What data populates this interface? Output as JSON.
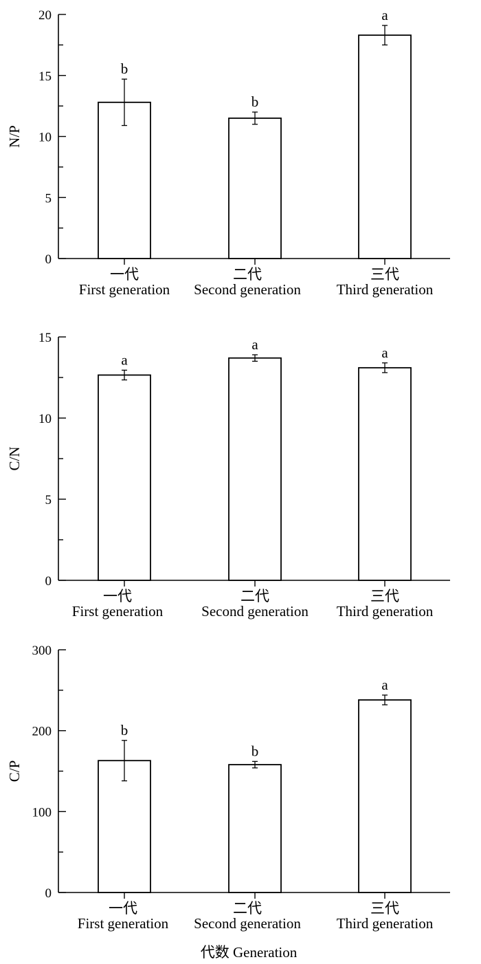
{
  "chart_data": [
    {
      "type": "bar",
      "ylabel": "N/P",
      "ylim": [
        0,
        20
      ],
      "yticks": [
        0,
        5,
        10,
        15,
        20
      ],
      "categories": [
        {
          "zh": "一代",
          "en": "First generation"
        },
        {
          "zh": "二代",
          "en": "Second generation"
        },
        {
          "zh": "三代",
          "en": "Third generation"
        }
      ],
      "values": [
        12.8,
        11.5,
        18.3
      ],
      "errors": [
        1.9,
        0.5,
        0.8
      ],
      "letters": [
        "b",
        "b",
        "a"
      ]
    },
    {
      "type": "bar",
      "ylabel": "C/N",
      "ylim": [
        0,
        15
      ],
      "yticks": [
        0,
        5,
        10,
        15
      ],
      "categories": [
        {
          "zh": "一代",
          "en": "First generation"
        },
        {
          "zh": "二代",
          "en": "Second generation"
        },
        {
          "zh": "三代",
          "en": "Third generation"
        }
      ],
      "values": [
        12.65,
        13.7,
        13.1
      ],
      "errors": [
        0.3,
        0.2,
        0.3
      ],
      "letters": [
        "a",
        "a",
        "a"
      ]
    },
    {
      "type": "bar",
      "ylabel": "C/P",
      "ylim": [
        0,
        300
      ],
      "yticks": [
        0,
        100,
        200,
        300
      ],
      "categories": [
        {
          "zh": "一代",
          "en": "First generation"
        },
        {
          "zh": "二代",
          "en": "Second generation"
        },
        {
          "zh": "三代",
          "en": "Third generation"
        }
      ],
      "values": [
        163,
        158,
        238
      ],
      "errors": [
        25,
        4,
        6
      ],
      "letters": [
        "b",
        "b",
        "a"
      ]
    }
  ],
  "xlabel": "代数  Generation"
}
